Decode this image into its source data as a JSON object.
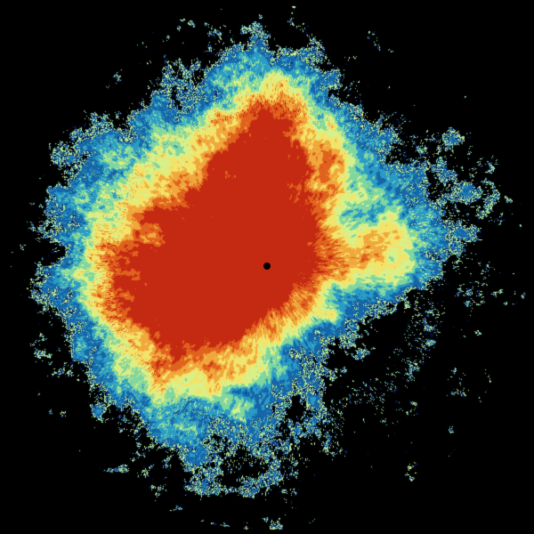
{
  "radar": {
    "background": "#000000",
    "palette": [
      "#0b2a6e",
      "#1565a8",
      "#2a9bc4",
      "#7fd6a0",
      "#d8f08a",
      "#f2e36a",
      "#f0a83c",
      "#e0621e",
      "#c42a12"
    ],
    "site_marker_color": "#000000"
  }
}
